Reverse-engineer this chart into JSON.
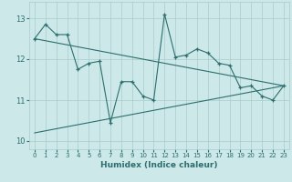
{
  "xlabel": "Humidex (Indice chaleur)",
  "background_color": "#cce8e8",
  "grid_color": "#aacccc",
  "line_color": "#2d6e6e",
  "x_data": [
    0,
    1,
    2,
    3,
    4,
    5,
    6,
    7,
    8,
    9,
    10,
    11,
    12,
    13,
    14,
    15,
    16,
    17,
    18,
    19,
    20,
    21,
    22,
    23
  ],
  "y_data": [
    12.5,
    12.85,
    12.6,
    12.6,
    11.75,
    11.9,
    11.95,
    10.45,
    11.45,
    11.45,
    11.1,
    11.0,
    13.1,
    12.05,
    12.1,
    12.25,
    12.15,
    11.9,
    11.85,
    11.3,
    11.35,
    11.1,
    11.0,
    11.35
  ],
  "trend1_x": [
    0,
    23
  ],
  "trend1_y": [
    12.5,
    11.35
  ],
  "trend2_x": [
    0,
    23
  ],
  "trend2_y": [
    10.2,
    11.35
  ],
  "ylim": [
    9.8,
    13.4
  ],
  "xlim": [
    -0.5,
    23.5
  ],
  "yticks": [
    10,
    11,
    12,
    13
  ],
  "xticks": [
    0,
    1,
    2,
    3,
    4,
    5,
    6,
    7,
    8,
    9,
    10,
    11,
    12,
    13,
    14,
    15,
    16,
    17,
    18,
    19,
    20,
    21,
    22,
    23
  ],
  "figsize": [
    3.2,
    2.0
  ],
  "dpi": 100
}
